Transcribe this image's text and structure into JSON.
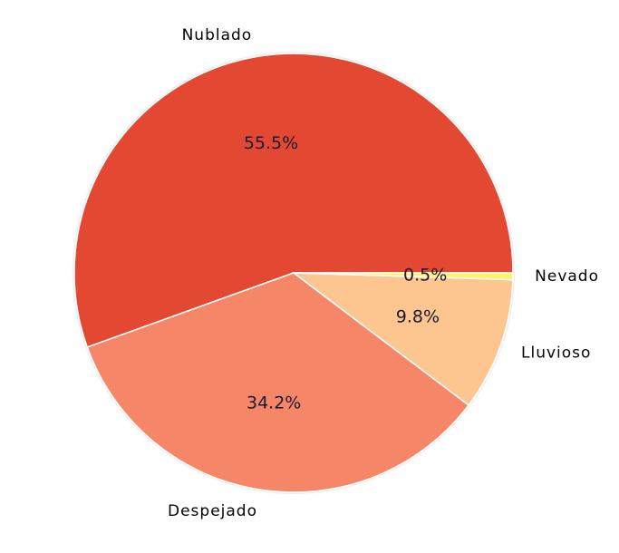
{
  "chart_data": {
    "type": "pie",
    "categories": [
      "Nublado",
      "Despejado",
      "Lluvioso",
      "Nevado"
    ],
    "values": [
      55.5,
      34.2,
      9.8,
      0.5
    ],
    "value_labels": [
      "55.5%",
      "34.2%",
      "9.8%",
      "0.5%"
    ],
    "colors": [
      "#e34a33",
      "#f58767",
      "#fdc690",
      "#fff266"
    ],
    "start_angle_deg": 0,
    "direction": "counterclockwise",
    "legend": "none"
  }
}
